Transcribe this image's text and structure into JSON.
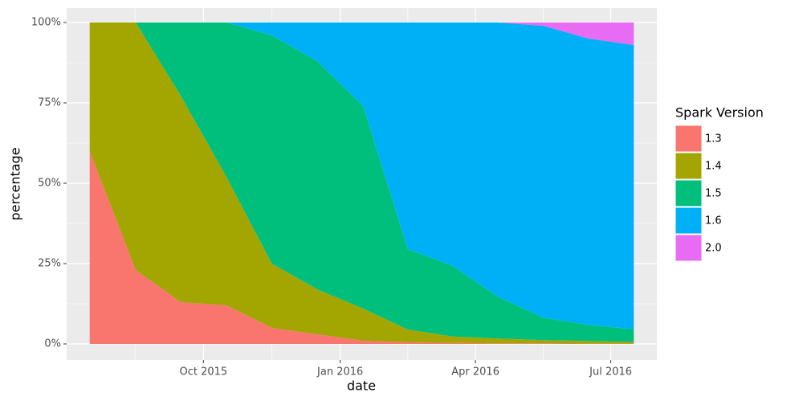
{
  "chart_data": {
    "type": "stacked-area",
    "x_label": "date",
    "y_label": "percentage",
    "legend_title": "Spark Version",
    "legend_position": "right",
    "x": [
      "2015-07",
      "2015-08",
      "2015-09",
      "2015-10",
      "2015-11",
      "2015-12",
      "2016-01",
      "2016-02",
      "2016-03",
      "2016-04",
      "2016-05",
      "2016-06",
      "2016-07"
    ],
    "series": [
      {
        "name": "1.3",
        "color": "#F8766D",
        "values": [
          60,
          23,
          13,
          12,
          5,
          3,
          1,
          0.5,
          0.3,
          0.2,
          0.2,
          0.1,
          0.1
        ]
      },
      {
        "name": "1.4",
        "color": "#A3A500",
        "values": [
          40,
          77,
          64,
          40,
          20,
          14,
          10,
          4,
          2,
          1.5,
          1,
          0.8,
          0.5
        ]
      },
      {
        "name": "1.5",
        "color": "#00BF7D",
        "values": [
          0,
          0,
          23,
          48,
          71,
          71,
          63,
          25,
          22,
          13,
          7,
          5,
          4
        ]
      },
      {
        "name": "1.6",
        "color": "#00B0F6",
        "values": [
          0,
          0,
          0,
          0,
          4,
          12,
          26,
          70.5,
          75.7,
          85.3,
          90.8,
          89.1,
          88.4
        ]
      },
      {
        "name": "2.0",
        "color": "#E76BF3",
        "values": [
          0,
          0,
          0,
          0,
          0,
          0,
          0,
          0,
          0,
          0,
          1,
          5,
          7
        ]
      }
    ],
    "xlim": [
      "2015-07",
      "2016-08"
    ],
    "xticks": [
      {
        "value": "2015-10",
        "label": "Oct 2015"
      },
      {
        "value": "2016-01",
        "label": "Jan 2016"
      },
      {
        "value": "2016-04",
        "label": "Apr 2016"
      },
      {
        "value": "2016-07",
        "label": "Jul 2016"
      }
    ],
    "ylim": [
      -5,
      104.5
    ],
    "yticks": [
      {
        "value": 0,
        "label": "0%"
      },
      {
        "value": 25,
        "label": "25%"
      },
      {
        "value": 50,
        "label": "50%"
      },
      {
        "value": 75,
        "label": "75%"
      },
      {
        "value": 100,
        "label": "100%"
      }
    ],
    "grid": true
  }
}
